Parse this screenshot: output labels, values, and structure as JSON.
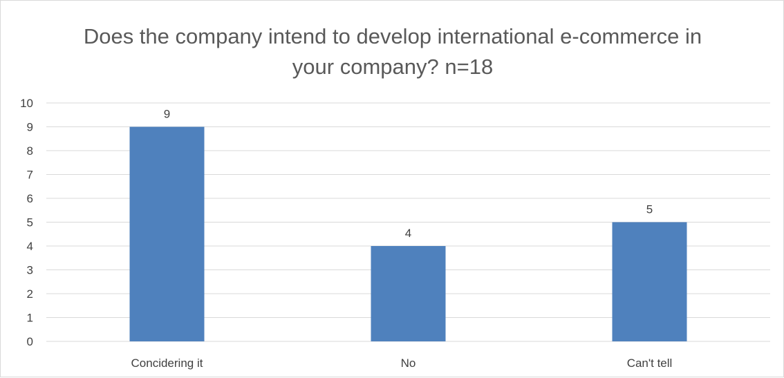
{
  "chart_data": {
    "type": "bar",
    "title_lines": [
      "Does the company intend to develop international e-commerce in",
      "your company? n=18"
    ],
    "categories": [
      "Concidering it",
      "No",
      "Can't tell"
    ],
    "values": [
      9,
      4,
      5
    ],
    "data_labels": [
      "9",
      "4",
      "5"
    ],
    "xlabel": "",
    "ylabel": "",
    "ylim": [
      0,
      10
    ],
    "yticks": [
      "0",
      "1",
      "2",
      "3",
      "4",
      "5",
      "6",
      "7",
      "8",
      "9",
      "10"
    ],
    "grid": true,
    "legend": "none",
    "bar_color": "#4f81bd",
    "grid_color": "#d9d9d9"
  }
}
